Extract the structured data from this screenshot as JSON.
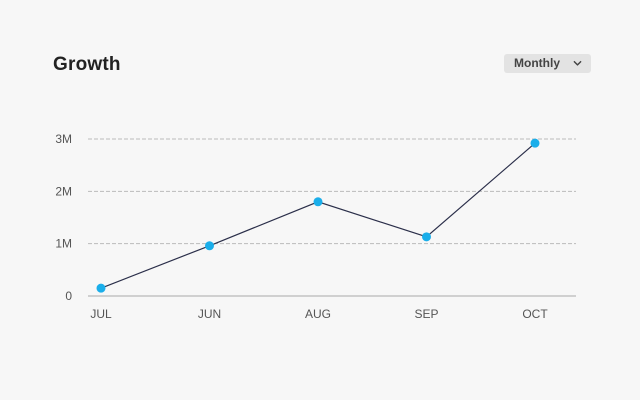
{
  "header": {
    "title": "Growth"
  },
  "period_select": {
    "value": "Monthly",
    "icon": "chevron-down-icon"
  },
  "chart_data": {
    "type": "line",
    "title": "Growth",
    "categories": [
      "JUL",
      "JUN",
      "AUG",
      "SEP",
      "OCT"
    ],
    "series": [
      {
        "values": [
          150000,
          960000,
          1800000,
          1130000,
          2920000
        ]
      }
    ],
    "yticks": [
      0,
      1000000,
      2000000,
      3000000
    ],
    "ytick_labels": [
      "0",
      "1M",
      "2M",
      "3M"
    ],
    "ylim": [
      0,
      3000000
    ],
    "grid": true,
    "legend": "none",
    "colors": {
      "line": "#2b2f4a",
      "marker": "#1aaeea",
      "grid": "#bbbbbb",
      "axis": "#aaaaaa"
    }
  }
}
